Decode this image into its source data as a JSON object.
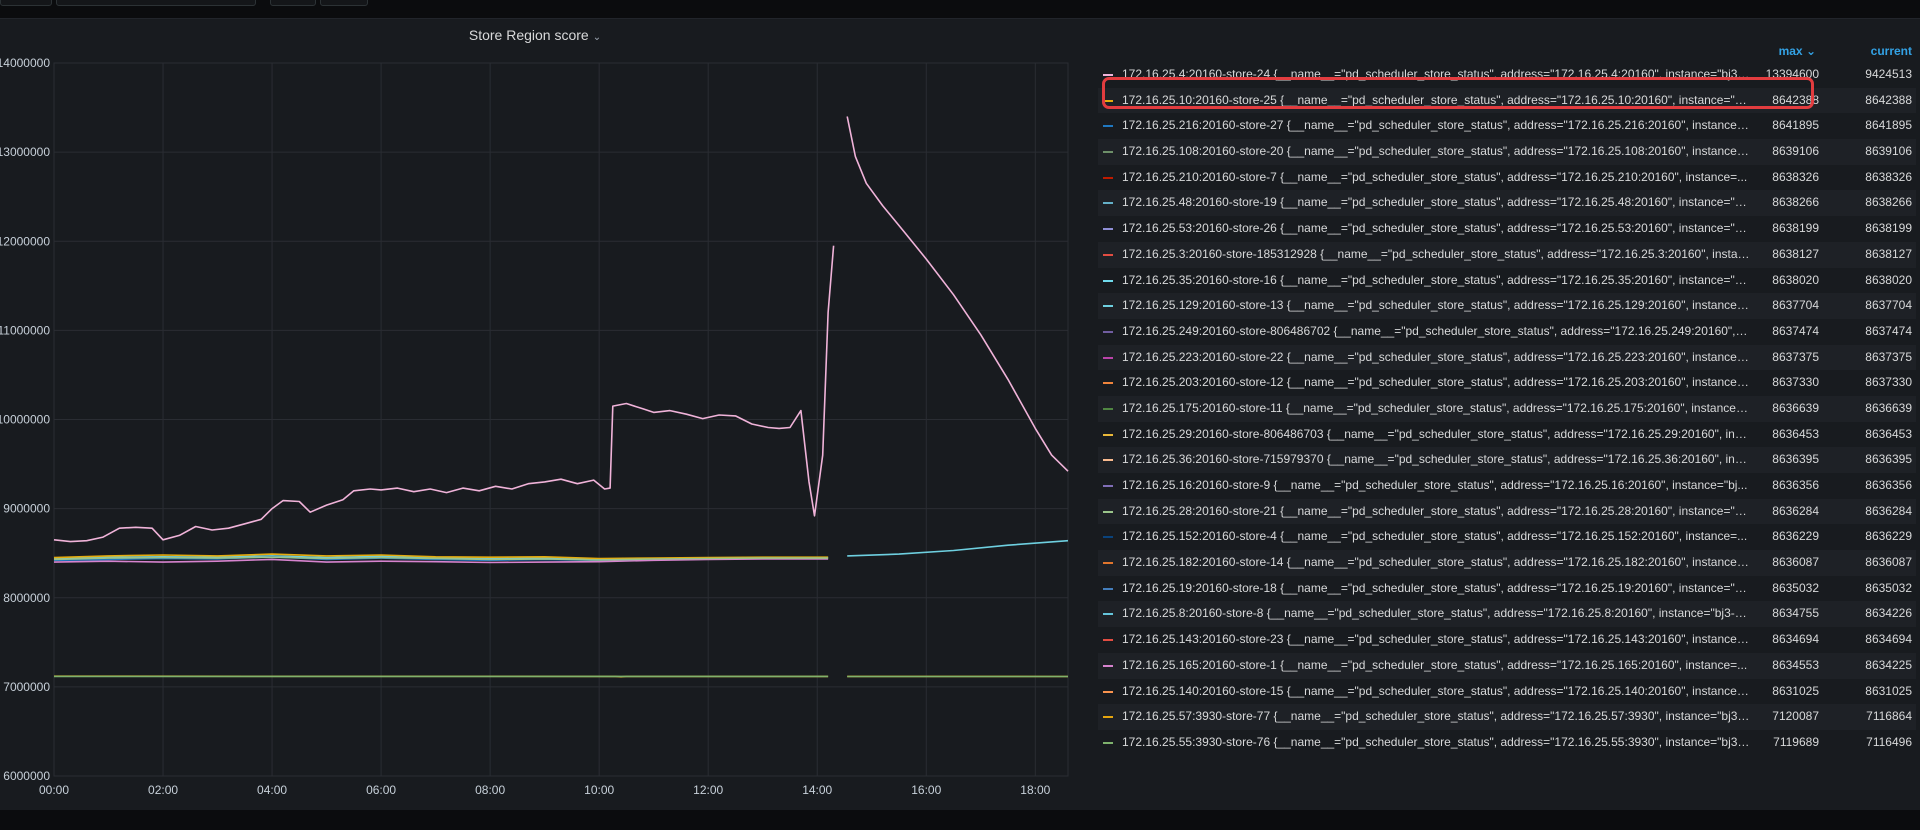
{
  "panel": {
    "title": "Store Region score"
  },
  "legend": {
    "max_label": "max",
    "current_label": "current",
    "rows": [
      {
        "name": "172.16.25.4:20160-store-24 {__name__=\"pd_scheduler_store_status\", address=\"172.16.25.4:20160\", instance=\"bj3-...",
        "max": "13394600",
        "current": "9424513",
        "color": "#f0b3d9"
      },
      {
        "name": "172.16.25.10:20160-store-25 {__name__=\"pd_scheduler_store_status\", address=\"172.16.25.10:20160\", instance=\"b...",
        "max": "8642388",
        "current": "8642388",
        "color": "#e5ac0e"
      },
      {
        "name": "172.16.25.216:20160-store-27 {__name__=\"pd_scheduler_store_status\", address=\"172.16.25.216:20160\", instance=...",
        "max": "8641895",
        "current": "8641895",
        "color": "#1f78c1"
      },
      {
        "name": "172.16.25.108:20160-store-20 {__name__=\"pd_scheduler_store_status\", address=\"172.16.25.108:20160\", instance=...",
        "max": "8639106",
        "current": "8639106",
        "color": "#6d8f69"
      },
      {
        "name": "172.16.25.210:20160-store-7 {__name__=\"pd_scheduler_store_status\", address=\"172.16.25.210:20160\", instance=...",
        "max": "8638326",
        "current": "8638326",
        "color": "#bf1b00"
      },
      {
        "name": "172.16.25.48:20160-store-19 {__name__=\"pd_scheduler_store_status\", address=\"172.16.25.48:20160\", instance=\"b...",
        "max": "8638266",
        "current": "8638266",
        "color": "#64b0c8"
      },
      {
        "name": "172.16.25.53:20160-store-26 {__name__=\"pd_scheduler_store_status\", address=\"172.16.25.53:20160\", instance=\"b...",
        "max": "8638199",
        "current": "8638199",
        "color": "#8f8fd6"
      },
      {
        "name": "172.16.25.3:20160-store-185312928 {__name__=\"pd_scheduler_store_status\", address=\"172.16.25.3:20160\", instan...",
        "max": "8638127",
        "current": "8638127",
        "color": "#e24d42"
      },
      {
        "name": "172.16.25.35:20160-store-16 {__name__=\"pd_scheduler_store_status\", address=\"172.16.25.35:20160\", instance=\"b...",
        "max": "8638020",
        "current": "8638020",
        "color": "#70dbed"
      },
      {
        "name": "172.16.25.129:20160-store-13 {__name__=\"pd_scheduler_store_status\", address=\"172.16.25.129:20160\", instance=...",
        "max": "8637704",
        "current": "8637704",
        "color": "#6ed0e0"
      },
      {
        "name": "172.16.25.249:20160-store-806486702 {__name__=\"pd_scheduler_store_status\", address=\"172.16.25.249:20160\", i...",
        "max": "8637474",
        "current": "8637474",
        "color": "#705da0"
      },
      {
        "name": "172.16.25.223:20160-store-22 {__name__=\"pd_scheduler_store_status\", address=\"172.16.25.223:20160\", instance=...",
        "max": "8637375",
        "current": "8637375",
        "color": "#ba43a9"
      },
      {
        "name": "172.16.25.203:20160-store-12 {__name__=\"pd_scheduler_store_status\", address=\"172.16.25.203:20160\", instance=...",
        "max": "8637330",
        "current": "8637330",
        "color": "#ef843c"
      },
      {
        "name": "172.16.25.175:20160-store-11 {__name__=\"pd_scheduler_store_status\", address=\"172.16.25.175:20160\", instance=...",
        "max": "8636639",
        "current": "8636639",
        "color": "#508642"
      },
      {
        "name": "172.16.25.29:20160-store-806486703 {__name__=\"pd_scheduler_store_status\", address=\"172.16.25.29:20160\", inst...",
        "max": "8636453",
        "current": "8636453",
        "color": "#eab839"
      },
      {
        "name": "172.16.25.36:20160-store-715979370 {__name__=\"pd_scheduler_store_status\", address=\"172.16.25.36:20160\", inst...",
        "max": "8636395",
        "current": "8636395",
        "color": "#f9ba8f"
      },
      {
        "name": "172.16.25.16:20160-store-9 {__name__=\"pd_scheduler_store_status\", address=\"172.16.25.16:20160\", instance=\"bj...",
        "max": "8636356",
        "current": "8636356",
        "color": "#806eb7"
      },
      {
        "name": "172.16.25.28:20160-store-21 {__name__=\"pd_scheduler_store_status\", address=\"172.16.25.28:20160\", instance=\"b...",
        "max": "8636284",
        "current": "8636284",
        "color": "#9ac48a"
      },
      {
        "name": "172.16.25.152:20160-store-4 {__name__=\"pd_scheduler_store_status\", address=\"172.16.25.152:20160\", instance=...",
        "max": "8636229",
        "current": "8636229",
        "color": "#0a437c"
      },
      {
        "name": "172.16.25.182:20160-store-14 {__name__=\"pd_scheduler_store_status\", address=\"172.16.25.182:20160\", instance=...",
        "max": "8636087",
        "current": "8636087",
        "color": "#e0752d"
      },
      {
        "name": "172.16.25.19:20160-store-18 {__name__=\"pd_scheduler_store_status\", address=\"172.16.25.19:20160\", instance=\"b...",
        "max": "8635032",
        "current": "8635032",
        "color": "#447ebc"
      },
      {
        "name": "172.16.25.8:20160-store-8 {__name__=\"pd_scheduler_store_status\", address=\"172.16.25.8:20160\", instance=\"bj3-ti...",
        "max": "8634755",
        "current": "8634226",
        "color": "#65c5db"
      },
      {
        "name": "172.16.25.143:20160-store-23 {__name__=\"pd_scheduler_store_status\", address=\"172.16.25.143:20160\", instance=...",
        "max": "8634694",
        "current": "8634694",
        "color": "#e24d42"
      },
      {
        "name": "172.16.25.165:20160-store-1 {__name__=\"pd_scheduler_store_status\", address=\"172.16.25.165:20160\", instance=...",
        "max": "8634553",
        "current": "8634225",
        "color": "#d683ce"
      },
      {
        "name": "172.16.25.140:20160-store-15 {__name__=\"pd_scheduler_store_status\", address=\"172.16.25.140:20160\", instance=...",
        "max": "8631025",
        "current": "8631025",
        "color": "#f9934e"
      },
      {
        "name": "172.16.25.57:3930-store-77 {__name__=\"pd_scheduler_store_status\", address=\"172.16.25.57:3930\", instance=\"bj3-...",
        "max": "7120087",
        "current": "7116864",
        "color": "#e5a50e"
      },
      {
        "name": "172.16.25.55:3930-store-76 {__name__=\"pd_scheduler_store_status\", address=\"172.16.25.55:3930\", instance=\"bj3-...",
        "max": "7119689",
        "current": "7116496",
        "color": "#7eb26d"
      }
    ]
  },
  "chart_data": {
    "type": "line",
    "title": "Store Region score",
    "xlabel": "",
    "ylabel": "",
    "x_ticks": [
      "00:00",
      "02:00",
      "04:00",
      "06:00",
      "08:00",
      "10:00",
      "12:00",
      "14:00",
      "16:00",
      "18:00"
    ],
    "y_ticks": [
      "6000000",
      "7000000",
      "8000000",
      "9000000",
      "10000000",
      "11000000",
      "12000000",
      "13000000",
      "14000000"
    ],
    "xlim": [
      0,
      18.6
    ],
    "ylim": [
      6000000,
      14000000
    ],
    "grid": true,
    "legend_position": "right",
    "series": [
      {
        "color": "#f0b3d9",
        "segments": [
          [
            [
              0,
              8650000
            ],
            [
              0.3,
              8630000
            ],
            [
              0.6,
              8640000
            ],
            [
              0.9,
              8680000
            ],
            [
              1.2,
              8780000
            ],
            [
              1.5,
              8790000
            ],
            [
              1.8,
              8780000
            ],
            [
              2.0,
              8650000
            ],
            [
              2.3,
              8700000
            ],
            [
              2.6,
              8800000
            ],
            [
              2.9,
              8760000
            ],
            [
              3.2,
              8780000
            ],
            [
              3.5,
              8830000
            ],
            [
              3.8,
              8880000
            ],
            [
              4.0,
              9000000
            ],
            [
              4.2,
              9090000
            ],
            [
              4.5,
              9080000
            ],
            [
              4.7,
              8960000
            ],
            [
              5.0,
              9040000
            ],
            [
              5.3,
              9100000
            ],
            [
              5.5,
              9200000
            ],
            [
              5.8,
              9220000
            ],
            [
              6.0,
              9210000
            ],
            [
              6.3,
              9230000
            ],
            [
              6.6,
              9190000
            ],
            [
              6.9,
              9220000
            ],
            [
              7.2,
              9180000
            ],
            [
              7.5,
              9230000
            ],
            [
              7.8,
              9200000
            ],
            [
              8.1,
              9250000
            ],
            [
              8.4,
              9220000
            ],
            [
              8.7,
              9280000
            ],
            [
              9.0,
              9300000
            ],
            [
              9.3,
              9330000
            ],
            [
              9.6,
              9280000
            ],
            [
              9.9,
              9320000
            ],
            [
              10.1,
              9220000
            ],
            [
              10.2,
              9230000
            ],
            [
              10.25,
              10150000
            ],
            [
              10.5,
              10180000
            ],
            [
              10.8,
              10120000
            ],
            [
              11.0,
              10080000
            ],
            [
              11.3,
              10100000
            ],
            [
              11.6,
              10060000
            ],
            [
              11.9,
              10010000
            ],
            [
              12.2,
              10050000
            ],
            [
              12.5,
              10040000
            ],
            [
              12.8,
              9950000
            ],
            [
              13.1,
              9910000
            ],
            [
              13.3,
              9900000
            ],
            [
              13.5,
              9910000
            ],
            [
              13.7,
              10100000
            ],
            [
              13.85,
              9300000
            ],
            [
              13.95,
              8920000
            ],
            [
              14.1,
              9600000
            ],
            [
              14.2,
              11200000
            ],
            [
              14.3,
              11950000
            ]
          ],
          [
            [
              14.55,
              13400000
            ],
            [
              14.7,
              12950000
            ],
            [
              14.9,
              12650000
            ],
            [
              15.2,
              12400000
            ],
            [
              15.6,
              12100000
            ],
            [
              16.0,
              11800000
            ],
            [
              16.5,
              11400000
            ],
            [
              17.0,
              10950000
            ],
            [
              17.5,
              10450000
            ],
            [
              18.0,
              9900000
            ],
            [
              18.3,
              9600000
            ],
            [
              18.6,
              9420000
            ]
          ]
        ]
      },
      {
        "color": "#6ed0e0",
        "segments": [
          [
            [
              0,
              8440000
            ],
            [
              1,
              8455000
            ],
            [
              2,
              8460000
            ],
            [
              3,
              8455000
            ],
            [
              4,
              8470000
            ],
            [
              5,
              8450000
            ],
            [
              6,
              8465000
            ],
            [
              7,
              8445000
            ],
            [
              8,
              8440000
            ],
            [
              9,
              8445000
            ],
            [
              10,
              8430000
            ],
            [
              11,
              8440000
            ],
            [
              12,
              8445000
            ],
            [
              13,
              8450000
            ],
            [
              14.2,
              8450000
            ]
          ],
          [
            [
              14.55,
              8470000
            ],
            [
              15.5,
              8490000
            ],
            [
              16.5,
              8530000
            ],
            [
              17.5,
              8590000
            ],
            [
              18.6,
              8640000
            ]
          ]
        ]
      },
      {
        "color": "#1f78c1",
        "segments": [
          [
            [
              0,
              8420000
            ],
            [
              1,
              8430000
            ],
            [
              2,
              8440000
            ],
            [
              3,
              8435000
            ],
            [
              4,
              8460000
            ],
            [
              5,
              8430000
            ],
            [
              6,
              8445000
            ],
            [
              7,
              8430000
            ],
            [
              8,
              8420000
            ],
            [
              9,
              8430000
            ],
            [
              10,
              8420000
            ],
            [
              11,
              8430000
            ],
            [
              12,
              8440000
            ],
            [
              13,
              8440000
            ],
            [
              14.2,
              8440000
            ]
          ]
        ]
      },
      {
        "color": "#d683ce",
        "segments": [
          [
            [
              0,
              8400000
            ],
            [
              1,
              8410000
            ],
            [
              2,
              8400000
            ],
            [
              3,
              8410000
            ],
            [
              4,
              8430000
            ],
            [
              5,
              8400000
            ],
            [
              6,
              8410000
            ],
            [
              7,
              8405000
            ],
            [
              8,
              8395000
            ],
            [
              9,
              8400000
            ],
            [
              10,
              8405000
            ],
            [
              11,
              8420000
            ],
            [
              12,
              8430000
            ],
            [
              13,
              8435000
            ],
            [
              14.2,
              8435000
            ]
          ]
        ]
      },
      {
        "color": "#e5ac0e",
        "segments": [
          [
            [
              0,
              8450000
            ],
            [
              1,
              8470000
            ],
            [
              2,
              8480000
            ],
            [
              3,
              8470000
            ],
            [
              4,
              8490000
            ],
            [
              5,
              8470000
            ],
            [
              6,
              8480000
            ],
            [
              7,
              8460000
            ],
            [
              8,
              8455000
            ],
            [
              9,
              8460000
            ],
            [
              10,
              8440000
            ],
            [
              11,
              8445000
            ],
            [
              12,
              8450000
            ],
            [
              13,
              8455000
            ],
            [
              14.2,
              8455000
            ]
          ]
        ]
      },
      {
        "color": "#9ac48a",
        "segments": [
          [
            [
              0,
              8430000
            ],
            [
              1,
              8445000
            ],
            [
              2,
              8450000
            ],
            [
              3,
              8445000
            ],
            [
              4,
              8455000
            ],
            [
              5,
              8440000
            ],
            [
              6,
              8450000
            ],
            [
              7,
              8440000
            ],
            [
              8,
              8430000
            ],
            [
              9,
              8435000
            ],
            [
              10,
              8425000
            ],
            [
              11,
              8435000
            ],
            [
              12,
              8440000
            ],
            [
              13,
              8445000
            ],
            [
              14.2,
              8445000
            ]
          ]
        ]
      },
      {
        "color": "#e5a50e",
        "segments": [
          [
            [
              0,
              7120000
            ],
            [
              10.3,
              7118000
            ],
            [
              10.4,
              7113000
            ],
            [
              10.5,
              7118000
            ],
            [
              14.2,
              7118000
            ]
          ],
          [
            [
              14.55,
              7117000
            ],
            [
              18.6,
              7116864
            ]
          ]
        ]
      },
      {
        "color": "#7eb26d",
        "segments": [
          [
            [
              0,
              7118000
            ],
            [
              14.2,
              7117000
            ]
          ],
          [
            [
              14.55,
              7116000
            ],
            [
              18.6,
              7116496
            ]
          ]
        ]
      }
    ]
  }
}
